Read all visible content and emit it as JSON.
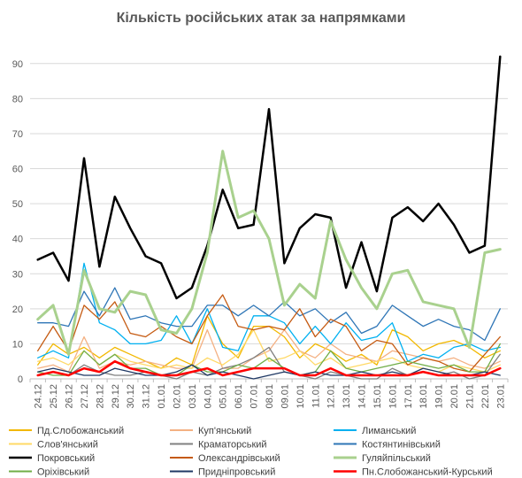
{
  "chart_data": {
    "type": "line",
    "title": "Кількість російських атак за напрямками",
    "xlabel": "",
    "ylabel": "",
    "ylim": [
      0,
      95
    ],
    "yticks": [
      0,
      10,
      20,
      30,
      40,
      50,
      60,
      70,
      80,
      90
    ],
    "grid": true,
    "legend_position": "bottom",
    "categories": [
      "24.12",
      "25.12",
      "26.12",
      "27.12",
      "28.12",
      "29.12",
      "30.12",
      "31.12",
      "01.01",
      "02.01",
      "03.01",
      "04.01",
      "05.01",
      "06.01",
      "07.01",
      "08.01",
      "09.01",
      "10.01",
      "11.01",
      "12.01",
      "13.01",
      "14.01",
      "15.01",
      "16.01",
      "17.01",
      "18.01",
      "19.01",
      "20.01",
      "21.01",
      "22.01",
      "23.01"
    ],
    "x": [
      "24.12",
      "",
      "25.12",
      "",
      "26.12",
      "",
      "27.12",
      "",
      "28.12",
      "",
      "29.12",
      "",
      "30.12",
      "",
      "31.12",
      "",
      "01.01",
      "",
      "02.01",
      "",
      "03.01",
      "",
      "04.01",
      "",
      "05.01",
      "",
      "06.01",
      "",
      "07.01",
      "",
      "08.01",
      "",
      "09.01",
      "",
      "10.01",
      "",
      "11.01",
      "",
      "12.01",
      "",
      "13.01",
      "",
      "14.01",
      "",
      "15.01",
      "",
      "16.01",
      "",
      "17.01",
      "",
      "18.01",
      "",
      "19.01",
      "",
      "20.01",
      "",
      "21.01",
      "",
      "22.01",
      "",
      "23.01"
    ],
    "series": [
      {
        "name": "Пд.Слобожанський",
        "color": "#F2B800",
        "width": 1.3,
        "values": [
          4,
          10,
          7,
          9,
          6,
          9,
          7,
          5,
          3,
          6,
          4,
          18,
          10,
          6,
          15,
          15,
          12,
          6,
          10,
          8,
          5,
          7,
          4,
          14,
          12,
          8,
          10,
          11,
          9,
          6,
          8
        ]
      },
      {
        "name": "Куп'янський",
        "color": "#F4B183",
        "width": 1.3,
        "values": [
          3,
          4,
          2,
          12,
          3,
          5,
          4,
          5,
          4,
          3,
          3,
          14,
          3,
          3,
          6,
          8,
          14,
          8,
          6,
          10,
          7,
          6,
          5,
          8,
          7,
          6,
          5,
          6,
          4,
          3,
          5
        ]
      },
      {
        "name": "Лиманський",
        "color": "#00B0F0",
        "width": 1.3,
        "values": [
          6,
          8,
          6,
          33,
          16,
          14,
          10,
          10,
          11,
          18,
          10,
          20,
          9,
          8,
          18,
          18,
          16,
          10,
          15,
          10,
          16,
          11,
          12,
          16,
          5,
          7,
          6,
          9,
          10,
          8,
          9
        ]
      },
      {
        "name": "Слов'янський",
        "color": "#FFD966",
        "width": 1.3,
        "values": [
          5,
          6,
          4,
          8,
          4,
          7,
          5,
          4,
          3,
          4,
          3,
          6,
          4,
          7,
          14,
          5,
          6,
          8,
          4,
          6,
          3,
          4,
          5,
          6,
          4,
          3,
          2,
          4,
          3,
          2,
          4
        ]
      },
      {
        "name": "Краматорський",
        "color": "#808080",
        "width": 1.3,
        "values": [
          1,
          2,
          1,
          4,
          2,
          1,
          1,
          2,
          1,
          0,
          2,
          1,
          3,
          4,
          6,
          9,
          2,
          1,
          0,
          2,
          1,
          0,
          0,
          3,
          1,
          2,
          1,
          2,
          0,
          1,
          7
        ]
      },
      {
        "name": "Костянтинівський",
        "color": "#2E75B6",
        "width": 1.3,
        "values": [
          16,
          16,
          15,
          25,
          18,
          26,
          17,
          18,
          16,
          15,
          15,
          21,
          21,
          18,
          21,
          18,
          22,
          18,
          20,
          16,
          19,
          13,
          15,
          21,
          18,
          15,
          17,
          15,
          14,
          11,
          20
        ]
      },
      {
        "name": "Покровський",
        "color": "#000000",
        "width": 2.5,
        "values": [
          34,
          36,
          28,
          63,
          32,
          52,
          43,
          35,
          33,
          23,
          26,
          38,
          54,
          43,
          44,
          77,
          33,
          43,
          47,
          46,
          26,
          39,
          25,
          46,
          49,
          45,
          50,
          44,
          36,
          38,
          92
        ]
      },
      {
        "name": "Олександрівський",
        "color": "#C55A11",
        "width": 1.3,
        "values": [
          8,
          15,
          8,
          21,
          17,
          22,
          13,
          12,
          15,
          12,
          10,
          18,
          24,
          15,
          14,
          15,
          14,
          20,
          12,
          17,
          15,
          8,
          11,
          10,
          4,
          6,
          5,
          3,
          2,
          7,
          12
        ]
      },
      {
        "name": "Гуляйпільський",
        "color": "#A9D18E",
        "width": 3,
        "values": [
          17,
          21,
          7,
          31,
          20,
          19,
          25,
          24,
          14,
          13,
          20,
          36,
          65,
          46,
          48,
          40,
          21,
          27,
          23,
          45,
          34,
          26,
          20,
          30,
          31,
          22,
          21,
          20,
          9,
          36,
          37
        ]
      },
      {
        "name": "Оріхівський",
        "color": "#70AD47",
        "width": 1.3,
        "values": [
          2,
          1,
          1,
          8,
          4,
          7,
          3,
          3,
          1,
          1,
          4,
          2,
          2,
          4,
          3,
          6,
          3,
          1,
          2,
          8,
          3,
          2,
          3,
          4,
          5,
          4,
          3,
          4,
          2,
          2,
          10
        ]
      },
      {
        "name": "Придніпровський",
        "color": "#1F3864",
        "width": 1.3,
        "values": [
          2,
          3,
          2,
          1,
          1,
          3,
          2,
          1,
          1,
          2,
          4,
          1,
          2,
          1,
          0,
          1,
          2,
          1,
          2,
          1,
          1,
          2,
          1,
          2,
          1,
          3,
          2,
          1,
          1,
          2,
          1
        ]
      },
      {
        "name": "Пн.Слобожанський-Курський",
        "color": "#FF0000",
        "width": 2.5,
        "values": [
          1,
          2,
          1,
          3,
          2,
          5,
          3,
          2,
          1,
          1,
          2,
          3,
          1,
          2,
          3,
          3,
          3,
          1,
          1,
          3,
          1,
          1,
          1,
          1,
          1,
          2,
          1,
          1,
          1,
          1,
          3
        ]
      }
    ]
  }
}
